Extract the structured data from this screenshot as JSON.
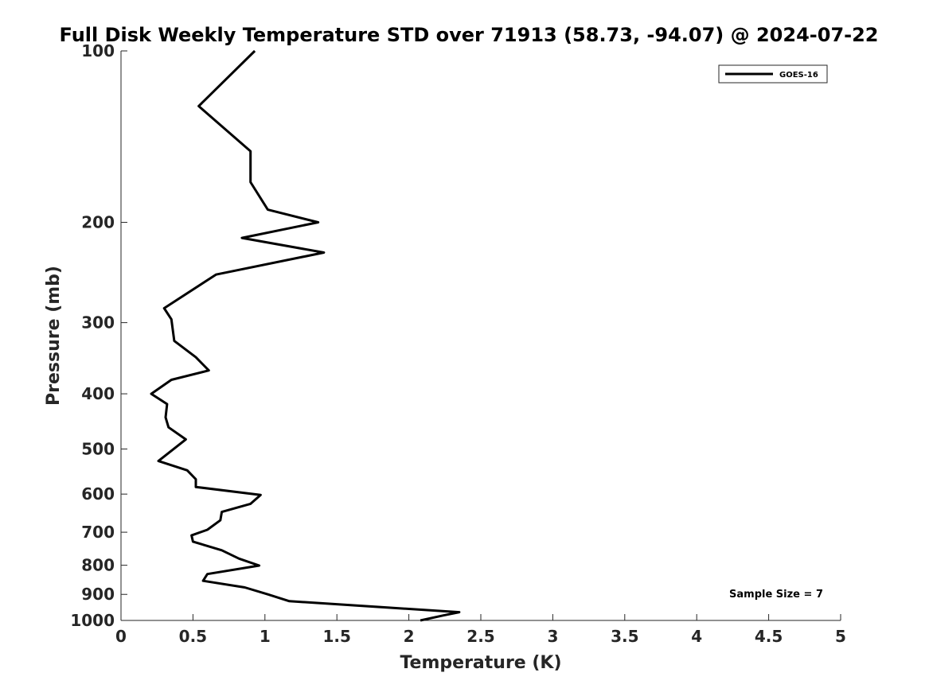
{
  "chart_data": {
    "type": "line",
    "title": "Full Disk Weekly Temperature STD over 71913 (58.73, -94.07) @ 2024-07-22",
    "xlabel": "Temperature (K)",
    "ylabel": "Pressure (mb)",
    "xlim": [
      0,
      5
    ],
    "ylim": [
      100,
      1000
    ],
    "y_scale": "log",
    "y_reversed": true,
    "x_ticks": [
      "0",
      "0.5",
      "1",
      "1.5",
      "2",
      "2.5",
      "3",
      "3.5",
      "4",
      "4.5",
      "5"
    ],
    "y_ticks": [
      "100",
      "200",
      "300",
      "400",
      "500",
      "600",
      "700",
      "800",
      "900",
      "1000"
    ],
    "grid": false,
    "legend_position": "top-right",
    "annotation": "Sample Size = 7",
    "series": [
      {
        "name": "GOES-16",
        "color": "#000000",
        "points": [
          [
            0.93,
            100
          ],
          [
            0.54,
            125
          ],
          [
            0.9,
            150
          ],
          [
            0.9,
            170
          ],
          [
            1.02,
            190
          ],
          [
            1.37,
            200
          ],
          [
            0.84,
            213
          ],
          [
            1.41,
            226
          ],
          [
            0.66,
            247
          ],
          [
            0.3,
            283
          ],
          [
            0.35,
            296
          ],
          [
            0.37,
            323
          ],
          [
            0.52,
            345
          ],
          [
            0.61,
            364
          ],
          [
            0.35,
            378
          ],
          [
            0.21,
            400
          ],
          [
            0.32,
            417
          ],
          [
            0.31,
            440
          ],
          [
            0.33,
            458
          ],
          [
            0.45,
            481
          ],
          [
            0.26,
            525
          ],
          [
            0.46,
            545
          ],
          [
            0.52,
            565
          ],
          [
            0.52,
            583
          ],
          [
            0.97,
            602
          ],
          [
            0.9,
            624
          ],
          [
            0.7,
            645
          ],
          [
            0.69,
            667
          ],
          [
            0.6,
            693
          ],
          [
            0.49,
            709
          ],
          [
            0.5,
            727
          ],
          [
            0.7,
            753
          ],
          [
            0.82,
            779
          ],
          [
            0.96,
            801
          ],
          [
            0.6,
            829
          ],
          [
            0.57,
            852
          ],
          [
            0.86,
            875
          ],
          [
            1.02,
            900
          ],
          [
            1.17,
            925
          ],
          [
            2.35,
            967
          ],
          [
            2.24,
            980
          ],
          [
            2.08,
            1000
          ]
        ]
      }
    ]
  }
}
